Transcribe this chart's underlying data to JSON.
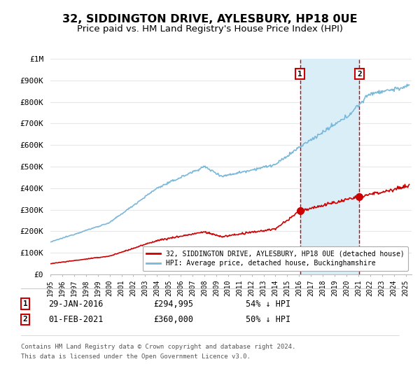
{
  "title": "32, SIDDINGTON DRIVE, AYLESBURY, HP18 0UE",
  "subtitle": "Price paid vs. HM Land Registry's House Price Index (HPI)",
  "title_fontsize": 11.5,
  "subtitle_fontsize": 9.5,
  "ylabel_ticks": [
    "£0",
    "£100K",
    "£200K",
    "£300K",
    "£400K",
    "£500K",
    "£600K",
    "£700K",
    "£800K",
    "£900K",
    "£1M"
  ],
  "ytick_values": [
    0,
    100000,
    200000,
    300000,
    400000,
    500000,
    600000,
    700000,
    800000,
    900000,
    1000000
  ],
  "ylim": [
    0,
    1000000
  ],
  "xlim_start": 1995.0,
  "xlim_end": 2025.5,
  "transaction1": {
    "year": 2016.08,
    "price": 294995,
    "label": "1",
    "date_str": "29-JAN-2016",
    "pct_str": "54% ↓ HPI"
  },
  "transaction2": {
    "year": 2021.09,
    "price": 360000,
    "label": "2",
    "date_str": "01-FEB-2021",
    "pct_str": "50% ↓ HPI"
  },
  "hpi_color": "#7ab8d9",
  "price_color": "#cc0000",
  "shade_color": "#daeef8",
  "grid_color": "#e8e8e8",
  "bg_color": "#ffffff",
  "legend_label1": "32, SIDDINGTON DRIVE, AYLESBURY, HP18 0UE (detached house)",
  "legend_label2": "HPI: Average price, detached house, Buckinghamshire",
  "footer1": "Contains HM Land Registry data © Crown copyright and database right 2024.",
  "footer2": "This data is licensed under the Open Government Licence v3.0."
}
